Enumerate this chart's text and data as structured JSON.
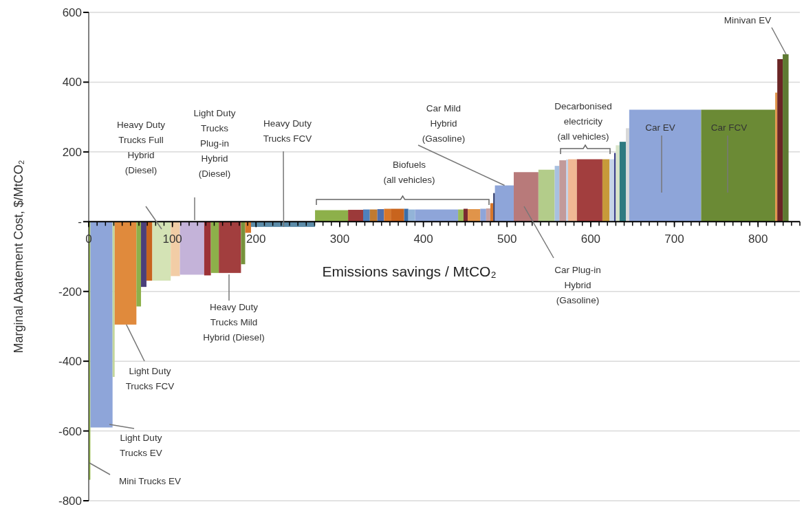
{
  "chart_data": {
    "type": "histogram",
    "xlabel": "Emissions savings / MtCO₂",
    "ylabel": "Marginal Abatement Cost, $/MtCO₂",
    "bins": [
      0,
      2,
      28.5,
      31,
      57,
      62.5,
      69,
      76,
      98,
      109,
      138,
      146,
      155.5,
      182,
      187,
      194,
      270.5,
      310,
      328,
      336,
      345,
      353,
      361,
      377,
      382,
      390,
      441.5,
      448,
      453,
      468,
      475,
      480,
      483.5,
      485.5,
      508,
      537.5,
      557,
      562.5,
      570.5,
      573,
      583.5,
      614,
      622.5,
      628,
      630,
      634.5,
      642,
      646,
      732,
      820.5,
      823,
      829.5,
      836.5
    ],
    "values": [
      -740,
      -590,
      -445,
      -295,
      -243,
      -187,
      -169,
      -169,
      -156,
      -152,
      -154,
      -147,
      -147,
      -122,
      -32,
      -15,
      33,
      34,
      35,
      35,
      36,
      37,
      37,
      37,
      35,
      35,
      35,
      37,
      36,
      37,
      38,
      53,
      82,
      104,
      142,
      149,
      160,
      176,
      178,
      179,
      179,
      179,
      179,
      197,
      219,
      229,
      268,
      321,
      321,
      370,
      466,
      480
    ],
    "colors": [
      "#9bbb59",
      "#8ea5d9",
      "#c3d69b",
      "#e08a3c",
      "#8db04a",
      "#4b3f7a",
      "#c8641e",
      "#d4e3b5",
      "#f2cda6",
      "#c4b3d9",
      "#9c3236",
      "#8db04a",
      "#a23e3e",
      "#77933c",
      "#d8772a",
      "#5b8ba8",
      "#8db04a",
      "#9c3a3a",
      "#4f81bd",
      "#c07a30",
      "#4f6fad",
      "#d8772a",
      "#c8641e",
      "#3c6ea8",
      "#93b4d8",
      "#8ea5d9",
      "#9bbb59",
      "#7a2a30",
      "#e0944a",
      "#8ea5d9",
      "#c9a0a0",
      "#d8772a",
      "#2f3b6b",
      "#8ea5d9",
      "#b87a7a",
      "#b3cc8a",
      "#a8c0e0",
      "#c29a9a",
      "#c6d4e8",
      "#f0b894",
      "#a23e3e",
      "#c79a3a",
      "#c6d4e8",
      "#3c3f8a",
      "#d8e4c8",
      "#2e7a80",
      "#d9d9d9",
      "#8ea5d9",
      "#6b8a35",
      "#e0944a",
      "#6b2525",
      "#5e7a32"
    ],
    "xlim": [
      0,
      850
    ],
    "xticks": [
      0,
      100,
      200,
      300,
      400,
      500,
      600,
      700,
      800
    ],
    "ylim": [
      -800,
      600
    ],
    "yticks": [
      -800,
      -600,
      -400,
      -200,
      {
        "value": 0,
        "label": "-"
      },
      200,
      400,
      600
    ],
    "grid": "y",
    "annotations": [
      "Heavy Duty\nTrucks Full\nHybrid\n(Diesel)",
      "Light Duty\nTrucks\nPlug-in\nHybrid\n(Diesel)",
      {
        "text": "Heavy Duty\nTrucks FCV",
        "x": 233,
        "y": -15
      },
      "Biofuels\n(all vehicles)",
      {
        "text": "Car Mild\nHybrid\n(Gasoline)",
        "x": 497,
        "y": 104
      },
      "Car Plug-in\nHybrid\n(Gasoline)",
      "Decarbonised\nelectricity\n(all vehicles)",
      "Car EV",
      "Car FCV",
      "Minivan EV",
      "Heavy Duty\nTrucks Mild\nHybrid (Diesel)",
      {
        "text": "Light Duty\nTrucks FCV",
        "x": 45,
        "y": -295
      },
      "Light Duty\nTrucks EV",
      "Mini Trucks EV"
    ]
  }
}
